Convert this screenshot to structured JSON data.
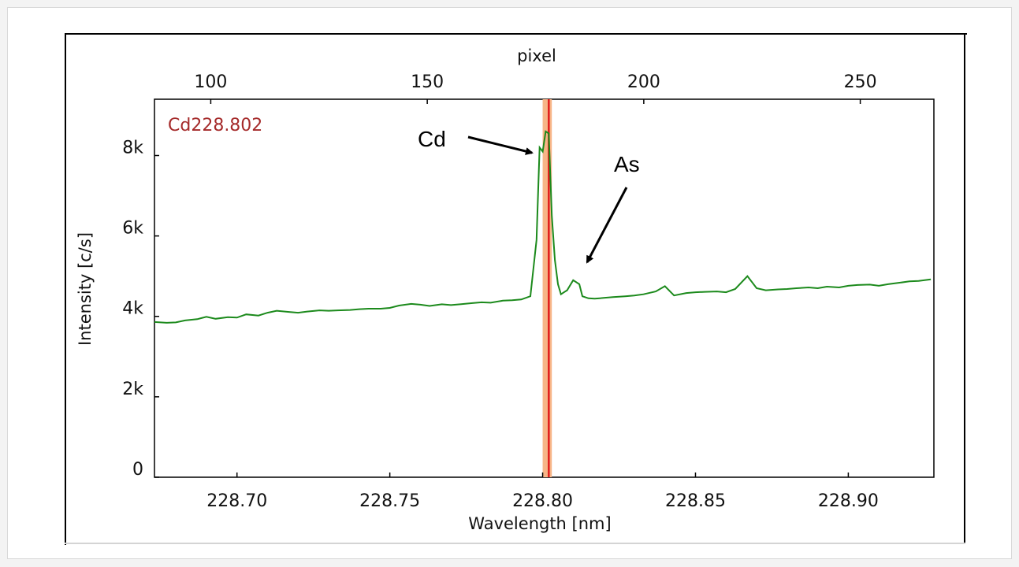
{
  "chart_data": {
    "type": "line",
    "title": "",
    "line_label": "Cd228.802",
    "line_label_color": "#a52a2a",
    "xlabel": "Wavelength [nm]",
    "x2label": "pixel",
    "ylabel": "Intensity [c/s]",
    "xlim": [
      228.673,
      228.928
    ],
    "ylim": [
      0,
      9400
    ],
    "x_ticks": [
      228.7,
      228.75,
      228.8,
      228.85,
      228.9
    ],
    "x_tick_labels": [
      "228.70",
      "228.75",
      "228.80",
      "228.85",
      "228.90"
    ],
    "x2lim": [
      87,
      267
    ],
    "x2_ticks": [
      100,
      150,
      200,
      250
    ],
    "x2_tick_labels": [
      "100",
      "150",
      "200",
      "250"
    ],
    "y_ticks": [
      0,
      2000,
      4000,
      6000,
      8000
    ],
    "y_tick_labels": [
      "0",
      "2k",
      "4k",
      "6k",
      "8k"
    ],
    "grid": false,
    "reference_line": {
      "x": 228.802,
      "band": [
        228.8,
        228.803
      ],
      "line_color": "#e01b1b",
      "band_color": "#f7b587"
    },
    "series": [
      {
        "color": "#1c8a1c",
        "x": [
          228.673,
          228.677,
          228.68,
          228.683,
          228.687,
          228.69,
          228.693,
          228.697,
          228.7,
          228.703,
          228.707,
          228.71,
          228.713,
          228.717,
          228.72,
          228.723,
          228.727,
          228.73,
          228.733,
          228.737,
          228.74,
          228.743,
          228.747,
          228.75,
          228.753,
          228.757,
          228.76,
          228.763,
          228.767,
          228.77,
          228.773,
          228.777,
          228.78,
          228.783,
          228.787,
          228.79,
          228.793,
          228.796,
          228.798,
          228.799,
          228.8,
          228.801,
          228.802,
          228.803,
          228.804,
          228.805,
          228.806,
          228.807,
          228.808,
          228.81,
          228.812,
          228.813,
          228.815,
          228.817,
          228.82,
          228.823,
          228.827,
          228.83,
          228.833,
          228.837,
          228.84,
          228.843,
          228.847,
          228.85,
          228.853,
          228.857,
          228.86,
          228.863,
          228.867,
          228.87,
          228.873,
          228.877,
          228.88,
          228.883,
          228.887,
          228.89,
          228.893,
          228.897,
          228.9,
          228.903,
          228.907,
          228.91,
          228.913,
          228.917,
          228.92,
          228.923,
          228.927
        ],
        "y": [
          3860,
          3840,
          3850,
          3900,
          3930,
          3990,
          3940,
          3980,
          3970,
          4050,
          4020,
          4090,
          4140,
          4110,
          4090,
          4120,
          4150,
          4140,
          4150,
          4160,
          4180,
          4190,
          4190,
          4210,
          4270,
          4310,
          4290,
          4260,
          4300,
          4280,
          4300,
          4330,
          4350,
          4340,
          4390,
          4400,
          4420,
          4500,
          5900,
          8200,
          8100,
          8600,
          8550,
          6500,
          5400,
          4800,
          4550,
          4600,
          4650,
          4900,
          4800,
          4500,
          4450,
          4440,
          4460,
          4480,
          4500,
          4520,
          4550,
          4620,
          4750,
          4520,
          4580,
          4600,
          4610,
          4620,
          4600,
          4680,
          5000,
          4700,
          4650,
          4670,
          4680,
          4700,
          4720,
          4700,
          4740,
          4720,
          4760,
          4780,
          4790,
          4760,
          4800,
          4840,
          4870,
          4880,
          4920
        ]
      }
    ],
    "annotations": [
      {
        "text": "Cd"
      },
      {
        "text": "As"
      }
    ]
  }
}
